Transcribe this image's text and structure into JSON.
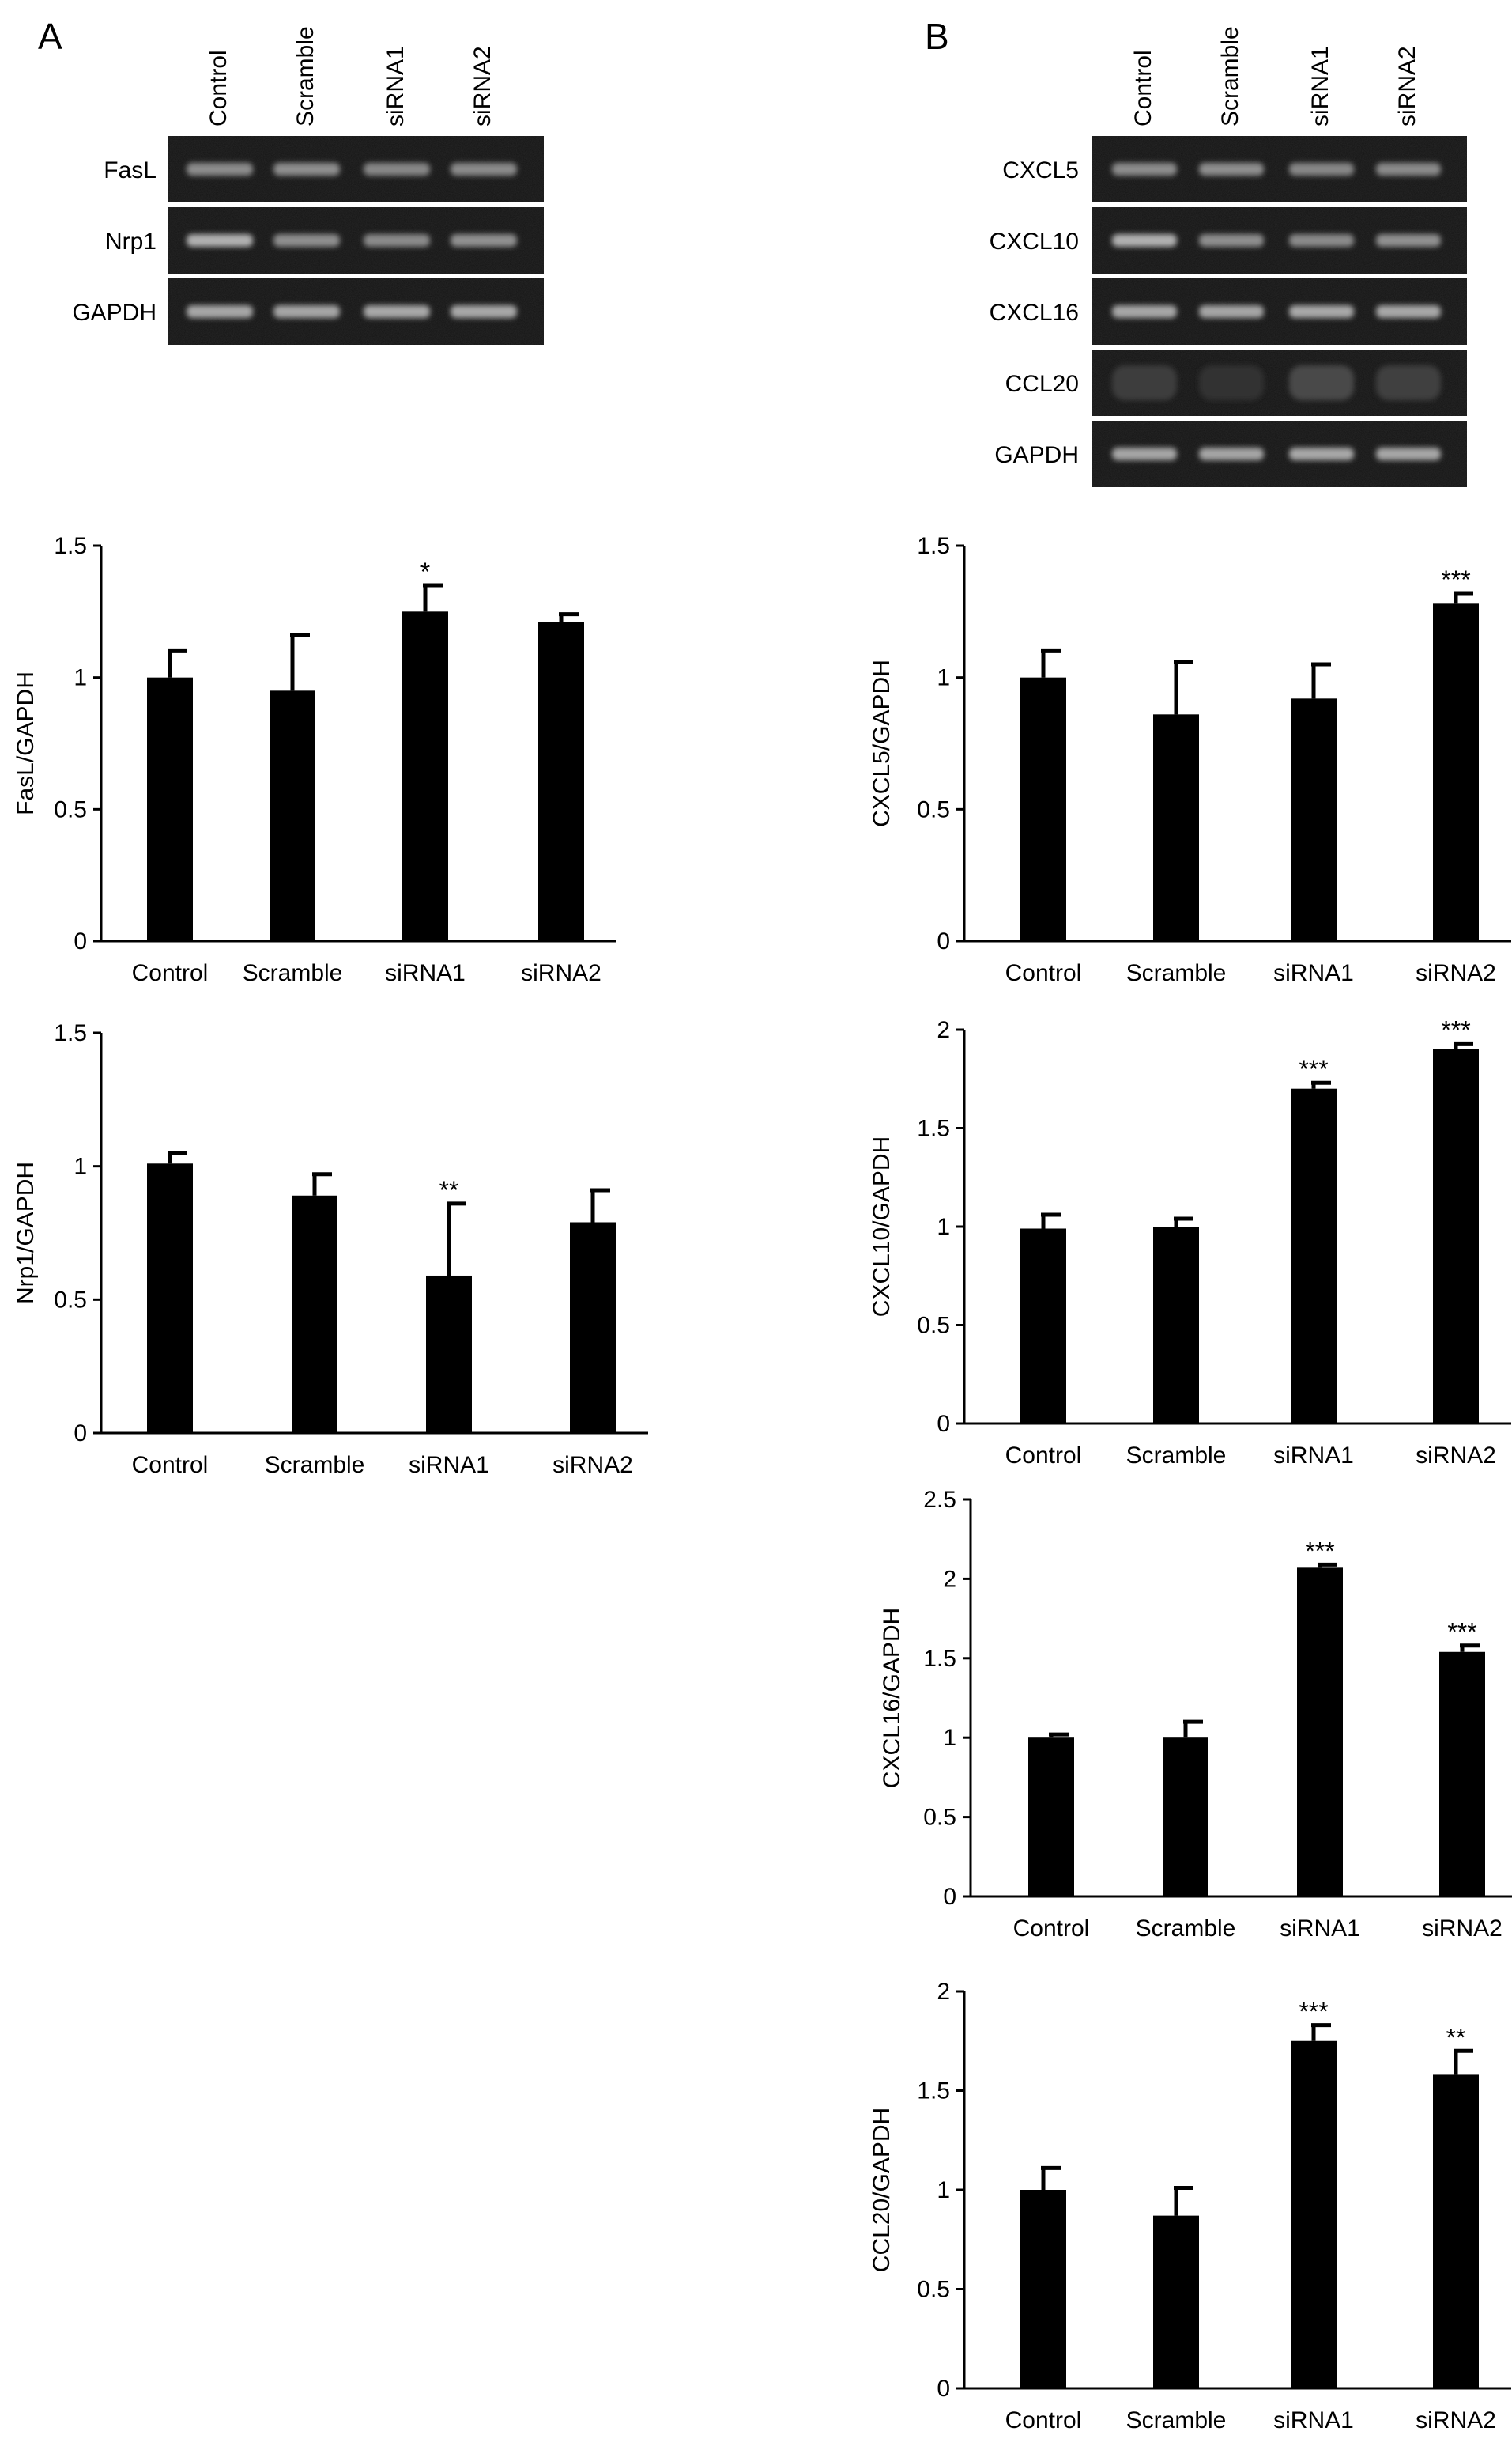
{
  "panels": {
    "A": {
      "letter": "A"
    },
    "B": {
      "letter": "B"
    }
  },
  "blots": [
    {
      "panel": "A",
      "lanes": [
        "Control",
        "Scramble",
        "siRNA1",
        "siRNA2"
      ],
      "rows": [
        "FasL",
        "Nrp1",
        "GAPDH"
      ]
    },
    {
      "panel": "B",
      "lanes": [
        "Control",
        "Scramble",
        "siRNA1",
        "siRNA2"
      ],
      "rows": [
        "CXCL5",
        "CXCL10",
        "CXCL16",
        "CCL20",
        "GAPDH"
      ]
    }
  ],
  "chart_data": [
    {
      "panel": "A",
      "type": "bar",
      "categories": [
        "Control",
        "Scramble",
        "siRNA1",
        "siRNA2"
      ],
      "values": [
        1.0,
        0.95,
        1.25,
        1.21
      ],
      "errors": [
        0.1,
        0.21,
        0.1,
        0.03
      ],
      "significance": [
        "",
        "",
        "*",
        ""
      ],
      "ylabel": "FasL/GAPDH",
      "ylim": [
        0,
        1.5
      ],
      "yticks": [
        "0",
        "0.5",
        "1",
        "1.5"
      ]
    },
    {
      "panel": "A",
      "type": "bar",
      "categories": [
        "Control",
        "Scramble",
        "siRNA1",
        "siRNA2"
      ],
      "values": [
        1.01,
        0.89,
        0.59,
        0.79
      ],
      "errors": [
        0.04,
        0.08,
        0.27,
        0.12
      ],
      "significance": [
        "",
        "",
        "**",
        ""
      ],
      "ylabel": "Nrp1/GAPDH",
      "ylim": [
        0,
        1.5
      ],
      "yticks": [
        "0",
        "0.5",
        "1",
        "1.5"
      ]
    },
    {
      "panel": "B",
      "type": "bar",
      "categories": [
        "Control",
        "Scramble",
        "siRNA1",
        "siRNA2"
      ],
      "values": [
        1.0,
        0.86,
        0.92,
        1.28
      ],
      "errors": [
        0.1,
        0.2,
        0.13,
        0.04
      ],
      "significance": [
        "",
        "",
        "",
        "***"
      ],
      "ylabel": "CXCL5/GAPDH",
      "ylim": [
        0,
        1.5
      ],
      "yticks": [
        "0",
        "0.5",
        "1",
        "1.5"
      ]
    },
    {
      "panel": "B",
      "type": "bar",
      "categories": [
        "Control",
        "Scramble",
        "siRNA1",
        "siRNA2"
      ],
      "values": [
        0.99,
        1.0,
        1.7,
        1.9
      ],
      "errors": [
        0.07,
        0.04,
        0.03,
        0.03
      ],
      "significance": [
        "",
        "",
        "***",
        "***"
      ],
      "ylabel": "CXCL10/GAPDH",
      "ylim": [
        0,
        2
      ],
      "yticks": [
        "0",
        "0.5",
        "1",
        "1.5",
        "2"
      ]
    },
    {
      "panel": "B",
      "type": "bar",
      "categories": [
        "Control",
        "Scramble",
        "siRNA1",
        "siRNA2"
      ],
      "values": [
        1.0,
        1.0,
        2.07,
        1.54
      ],
      "errors": [
        0.02,
        0.1,
        0.02,
        0.04
      ],
      "significance": [
        "",
        "",
        "***",
        "***"
      ],
      "ylabel": "CXCL16/GAPDH",
      "ylim": [
        0,
        2.5
      ],
      "yticks": [
        "0",
        "0.5",
        "1",
        "1.5",
        "2",
        "2.5"
      ]
    },
    {
      "panel": "B",
      "type": "bar",
      "categories": [
        "Control",
        "Scramble",
        "siRNA1",
        "siRNA2"
      ],
      "values": [
        1.0,
        0.87,
        1.75,
        1.58
      ],
      "errors": [
        0.11,
        0.14,
        0.08,
        0.12
      ],
      "significance": [
        "",
        "",
        "***",
        "**"
      ],
      "ylabel": "CCL20/GAPDH",
      "ylim": [
        0,
        2
      ],
      "yticks": [
        "0",
        "0.5",
        "1",
        "1.5",
        "2"
      ]
    }
  ]
}
